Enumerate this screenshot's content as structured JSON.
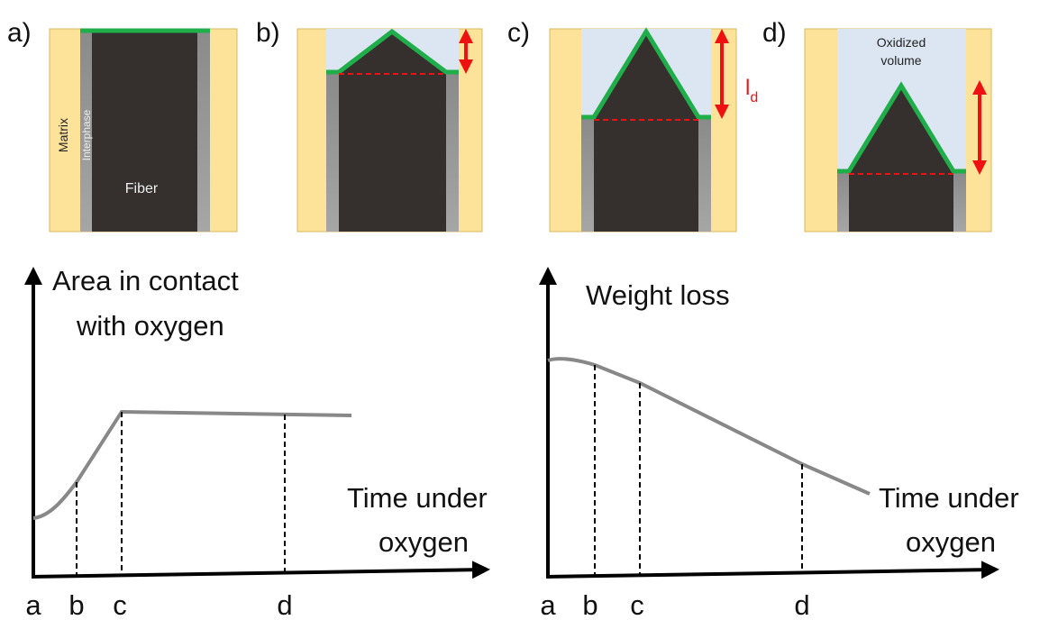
{
  "panels": [
    {
      "label": "a)",
      "matrix": "Matrix",
      "interphase": "Interphase",
      "fiber": "Fiber"
    },
    {
      "label": "b)"
    },
    {
      "label": "c)",
      "ld_symbol": "l",
      "ld_subscript": "d"
    },
    {
      "label": "d)",
      "oxidized_lines": [
        "Oxidized",
        "volume"
      ]
    }
  ],
  "graphs": [
    {
      "title_lines": [
        "Area in contact",
        "with oxygen"
      ],
      "x_label_lines": [
        "Time under",
        "oxygen"
      ],
      "ticks": [
        "a",
        "b",
        "c",
        "d"
      ]
    },
    {
      "title_lines": [
        "Weight loss"
      ],
      "x_label_lines": [
        "Time under",
        "oxygen"
      ],
      "ticks": [
        "a",
        "b",
        "c",
        "d"
      ]
    }
  ]
}
